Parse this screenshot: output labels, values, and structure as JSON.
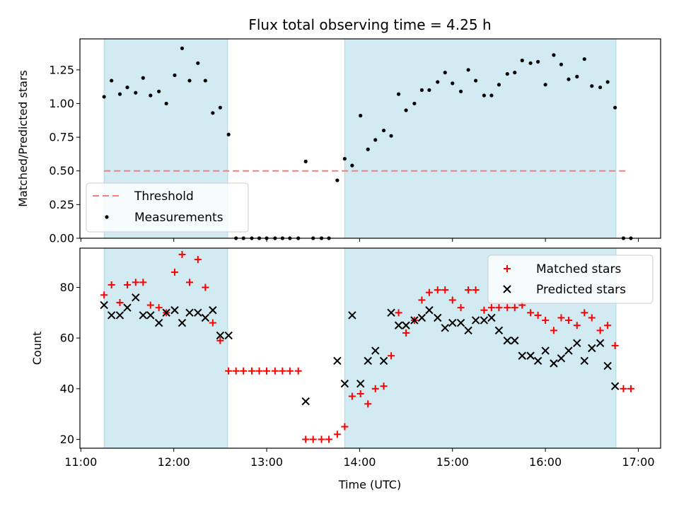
{
  "chart_data": {
    "title": "Flux total observing time = 4.25 h",
    "xlabel": "Time (UTC)",
    "x_ticks": [
      "11:00",
      "12:00",
      "13:00",
      "14:00",
      "15:00",
      "16:00",
      "17:00"
    ],
    "x_range_hours": [
      10.99,
      17.24
    ],
    "shaded_intervals": [
      [
        11.25,
        12.58
      ],
      [
        13.84,
        16.76
      ]
    ],
    "colors": {
      "shade": "#add8e6",
      "threshold": "#f08080",
      "measurements": "#000000",
      "matched": "#ff0000",
      "predicted": "#000000"
    },
    "panels": [
      {
        "type": "scatter",
        "ylabel": "Matched/Predicted stars",
        "ylim": [
          0,
          1.48
        ],
        "y_ticks": [
          "0.00",
          "0.25",
          "0.50",
          "0.75",
          "1.00",
          "1.25"
        ],
        "threshold": 0.5,
        "threshold_x_range": [
          11.25,
          16.88
        ],
        "legend": {
          "placement": "lower-left",
          "entries": [
            "Threshold",
            "Measurements"
          ]
        },
        "series": [
          {
            "name": "Measurements",
            "marker": "dot",
            "x": [
              11.25,
              11.33,
              11.42,
              11.5,
              11.59,
              11.67,
              11.75,
              11.84,
              11.92,
              12.01,
              12.09,
              12.17,
              12.26,
              12.34,
              12.42,
              12.5,
              12.59,
              12.67,
              12.75,
              12.84,
              12.92,
              13.0,
              13.09,
              13.17,
              13.25,
              13.34,
              13.42,
              13.5,
              13.59,
              13.67,
              13.76,
              13.84,
              13.92,
              14.01,
              14.09,
              14.17,
              14.26,
              14.34,
              14.42,
              14.5,
              14.59,
              14.67,
              14.75,
              14.84,
              14.92,
              15.0,
              15.09,
              15.17,
              15.25,
              15.34,
              15.42,
              15.5,
              15.59,
              15.67,
              15.75,
              15.84,
              15.92,
              16.0,
              16.09,
              16.17,
              16.25,
              16.34,
              16.42,
              16.5,
              16.59,
              16.67,
              16.75,
              16.84,
              16.92
            ],
            "y": [
              1.05,
              1.17,
              1.07,
              1.12,
              1.08,
              1.19,
              1.06,
              1.09,
              1.0,
              1.21,
              1.41,
              1.17,
              1.3,
              1.17,
              0.93,
              0.97,
              0.77,
              0.0,
              0.0,
              0.0,
              0.0,
              0.0,
              0.0,
              0.0,
              0.0,
              0.0,
              0.57,
              0.0,
              0.0,
              0.0,
              0.43,
              0.59,
              0.54,
              0.91,
              0.66,
              0.73,
              0.8,
              0.76,
              1.07,
              0.95,
              1.0,
              1.1,
              1.1,
              1.16,
              1.23,
              1.15,
              1.09,
              1.25,
              1.17,
              1.06,
              1.06,
              1.14,
              1.22,
              1.23,
              1.32,
              1.3,
              1.31,
              1.14,
              1.36,
              1.29,
              1.18,
              1.2,
              1.33,
              1.13,
              1.12,
              1.16,
              0.97,
              0.0,
              0.0
            ]
          }
        ]
      },
      {
        "type": "scatter",
        "ylabel": "Count",
        "ylim": [
          16.5,
          95.5
        ],
        "y_ticks": [
          "20",
          "40",
          "60",
          "80"
        ],
        "legend": {
          "placement": "upper-right",
          "entries": [
            "Matched stars",
            "Predicted stars"
          ]
        },
        "series": [
          {
            "name": "Matched stars",
            "marker": "plus",
            "x": [
              11.25,
              11.33,
              11.42,
              11.5,
              11.59,
              11.67,
              11.75,
              11.84,
              11.92,
              12.01,
              12.09,
              12.17,
              12.26,
              12.34,
              12.42,
              12.5,
              12.59,
              12.67,
              12.75,
              12.84,
              12.92,
              13.0,
              13.09,
              13.17,
              13.25,
              13.34,
              13.42,
              13.5,
              13.59,
              13.67,
              13.76,
              13.84,
              13.92,
              14.01,
              14.09,
              14.17,
              14.26,
              14.34,
              14.42,
              14.5,
              14.59,
              14.67,
              14.75,
              14.84,
              14.92,
              15.0,
              15.09,
              15.17,
              15.25,
              15.34,
              15.42,
              15.5,
              15.59,
              15.67,
              15.75,
              15.84,
              15.92,
              16.0,
              16.09,
              16.17,
              16.25,
              16.34,
              16.42,
              16.5,
              16.59,
              16.67,
              16.75,
              16.84,
              16.92
            ],
            "y": [
              77,
              81,
              74,
              81,
              82,
              82,
              73,
              72,
              70,
              86,
              93,
              82,
              91,
              80,
              66,
              59,
              47,
              47,
              47,
              47,
              47,
              47,
              47,
              47,
              47,
              47,
              20,
              20,
              20,
              20,
              22,
              25,
              37,
              38,
              34,
              40,
              41,
              53,
              70,
              62,
              67,
              75,
              78,
              79,
              79,
              75,
              72,
              79,
              79,
              71,
              72,
              72,
              72,
              72,
              73,
              70,
              69,
              67,
              63,
              68,
              67,
              65,
              70,
              68,
              63,
              65,
              57,
              40,
              40
            ]
          },
          {
            "name": "Predicted stars",
            "marker": "x",
            "x": [
              11.25,
              11.33,
              11.42,
              11.5,
              11.59,
              11.67,
              11.75,
              11.84,
              11.92,
              12.01,
              12.09,
              12.17,
              12.26,
              12.34,
              12.42,
              12.5,
              12.59,
              13.42,
              13.76,
              13.84,
              13.92,
              14.01,
              14.09,
              14.17,
              14.26,
              14.34,
              14.42,
              14.5,
              14.59,
              14.67,
              14.75,
              14.84,
              14.92,
              15.0,
              15.09,
              15.17,
              15.25,
              15.34,
              15.42,
              15.5,
              15.59,
              15.67,
              15.75,
              15.84,
              15.92,
              16.0,
              16.09,
              16.17,
              16.25,
              16.34,
              16.42,
              16.5,
              16.59,
              16.67,
              16.75
            ],
            "y": [
              73,
              69,
              69,
              72,
              76,
              69,
              69,
              66,
              70,
              71,
              66,
              70,
              70,
              68,
              71,
              61,
              61,
              35,
              51,
              42,
              69,
              42,
              51,
              55,
              51,
              70,
              65,
              65,
              67,
              68,
              71,
              68,
              64,
              66,
              66,
              63,
              67,
              67,
              68,
              63,
              59,
              59,
              53,
              53,
              51,
              55,
              50,
              52,
              55,
              58,
              51,
              56,
              58,
              49,
              41
            ]
          }
        ]
      }
    ]
  }
}
